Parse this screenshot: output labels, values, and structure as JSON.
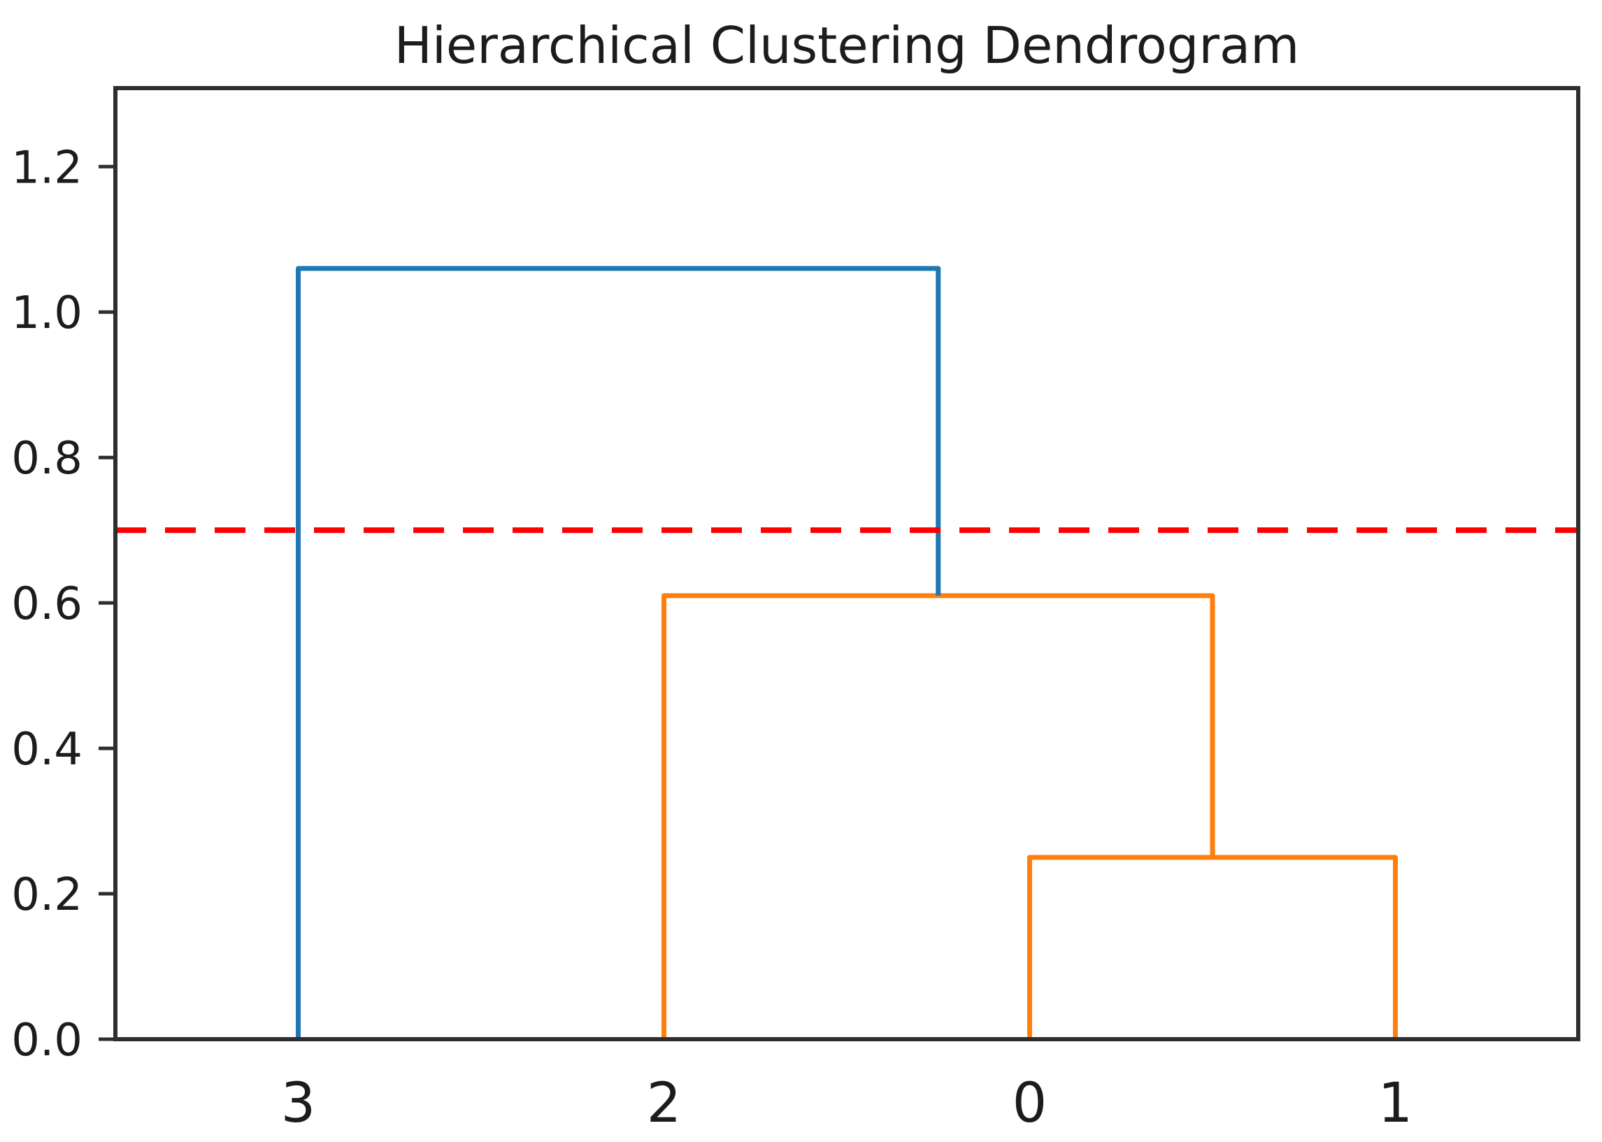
{
  "chart_data": {
    "type": "dendrogram",
    "title": "Hierarchical Clustering Dendrogram",
    "xlabel": "",
    "ylabel": "",
    "grid": false,
    "legend_position": "none",
    "xlim": [
      0,
      40
    ],
    "ylim": [
      0,
      1.308
    ],
    "leaf_labels": [
      "3",
      "2",
      "0",
      "1"
    ],
    "leaf_positions": [
      5,
      15,
      25,
      35
    ],
    "yticks": {
      "values": [
        0,
        0.2,
        0.4,
        0.6,
        0.8,
        1.0,
        1.2
      ],
      "labels": [
        "0.0",
        "0.2",
        "0.4",
        "0.6",
        "0.8",
        "1.0",
        "1.2"
      ]
    },
    "merges": [
      {
        "members": [
          "0",
          "1"
        ],
        "height": 0.25,
        "color": "#ff7f0e"
      },
      {
        "members": [
          "2",
          "0+1"
        ],
        "height": 0.61,
        "color": "#ff7f0e"
      },
      {
        "members": [
          "3",
          "2+0+1"
        ],
        "height": 1.06,
        "color": "#1f77b4"
      }
    ],
    "links": [
      {
        "x": [
          25,
          25,
          35,
          35
        ],
        "y": [
          0,
          0.25,
          0.25,
          0
        ],
        "color": "#ff7f0e"
      },
      {
        "x": [
          15,
          15,
          30,
          30
        ],
        "y": [
          0,
          0.61,
          0.61,
          0.25
        ],
        "color": "#ff7f0e"
      },
      {
        "x": [
          5,
          5,
          22.5,
          22.5
        ],
        "y": [
          0,
          1.06,
          1.06,
          0.61
        ],
        "color": "#1f77b4"
      }
    ],
    "threshold_line": {
      "y": 0.7,
      "color": "#ff0000",
      "style": "dashed"
    },
    "colors": {
      "cluster_blue": "#1f77b4",
      "cluster_orange": "#ff7f0e",
      "threshold_red": "#ff0000",
      "axis": "#2e2e2e",
      "text": "#1c1c1c"
    }
  }
}
